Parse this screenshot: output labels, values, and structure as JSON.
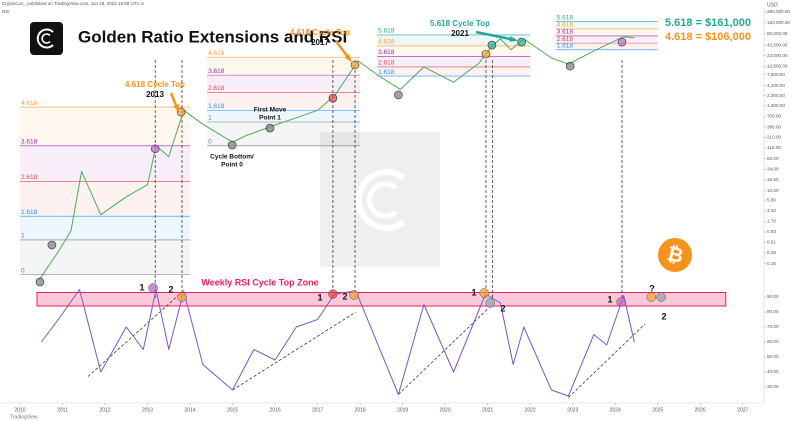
{
  "header": {
    "publisher": "CryptoCon_ published on TradingView.com, Jun 18, 2024 15:58 UTC-4",
    "indicator": "RSI",
    "currency": "USD",
    "footer": "TradingView"
  },
  "chart_data": {
    "type": "line",
    "title": "Golden Ratio Extensions and RSI",
    "log_scale": true,
    "xlim": [
      2010,
      2027.5
    ],
    "xticks": [
      2010,
      2011,
      2012,
      2013,
      2014,
      2015,
      2016,
      2017,
      2018,
      2019,
      2020,
      2021,
      2022,
      2023,
      2024,
      2025,
      2026,
      2027
    ],
    "ylim": [
      0.01,
      280000
    ],
    "yticks": [
      {
        "value": 280000,
        "label": "280,000.00"
      },
      {
        "value": 150000,
        "label": "150,000.00"
      },
      {
        "value": 80000,
        "label": "80,000.00"
      },
      {
        "value": 42000,
        "label": "42,000.00"
      },
      {
        "value": 23000,
        "label": "23,000.00"
      },
      {
        "value": 12500,
        "label": "12,500.00"
      },
      {
        "value": 7600,
        "label": "7,600.00"
      },
      {
        "value": 4100,
        "label": "4,100.00"
      },
      {
        "value": 2300,
        "label": "2,300.00"
      },
      {
        "value": 1300,
        "label": "1,300.00"
      },
      {
        "value": 700,
        "label": "700.00"
      },
      {
        "value": 380,
        "label": "380.00"
      },
      {
        "value": 210,
        "label": "210.00"
      },
      {
        "value": 115,
        "label": "115.00"
      },
      {
        "value": 62,
        "label": "62.00"
      },
      {
        "value": 34,
        "label": "34.00"
      },
      {
        "value": 18.5,
        "label": "18.50"
      },
      {
        "value": 10,
        "label": "10.00"
      },
      {
        "value": 5.8,
        "label": "5.80"
      },
      {
        "value": 3.1,
        "label": "3.10"
      },
      {
        "value": 1.7,
        "label": "1.70"
      },
      {
        "value": 0.93,
        "label": "0.93"
      },
      {
        "value": 0.51,
        "label": "0.51"
      },
      {
        "value": 0.28,
        "label": "0.28"
      },
      {
        "value": 0.15,
        "label": "0.15"
      }
    ],
    "price": {
      "color": "#4caf50",
      "x": [
        2010.45,
        2010.9,
        2011.2,
        2011.45,
        2011.9,
        2012.5,
        2013.0,
        2013.2,
        2013.5,
        2013.85,
        2014.3,
        2015.0,
        2015.3,
        2016.0,
        2016.5,
        2017.0,
        2017.4,
        2017.95,
        2018.5,
        2018.95,
        2019.5,
        2020.2,
        2020.8,
        2021.1,
        2021.3,
        2021.55,
        2021.85,
        2022.5,
        2022.9,
        2023.5,
        2024.2,
        2024.45
      ],
      "values": [
        0.06,
        0.3,
        1,
        30,
        2.5,
        7,
        14,
        130,
        70,
        1000,
        450,
        160,
        230,
        430,
        650,
        1000,
        2300,
        17000,
        6500,
        3300,
        12000,
        5000,
        15000,
        40000,
        60000,
        32000,
        60000,
        20000,
        14000,
        30000,
        68000,
        64000
      ]
    },
    "y2lim": [
      20,
      100
    ],
    "y2ticks": [
      {
        "value": 90,
        "label": "90.00"
      },
      {
        "value": 80,
        "label": "80.00"
      },
      {
        "value": 70,
        "label": "70.00"
      },
      {
        "value": 60,
        "label": "60.00"
      },
      {
        "value": 50,
        "label": "50.00"
      },
      {
        "value": 40,
        "label": "40.00"
      },
      {
        "value": 30,
        "label": "30.00"
      }
    ],
    "rsi": {
      "color": "#7e57c2",
      "x": [
        2010.5,
        2010.9,
        2011.4,
        2011.9,
        2012.5,
        2012.9,
        2013.2,
        2013.5,
        2013.85,
        2014.3,
        2015.0,
        2015.5,
        2016.0,
        2016.5,
        2017.0,
        2017.4,
        2017.9,
        2018.9,
        2019.5,
        2020.2,
        2020.95,
        2021.3,
        2021.6,
        2021.85,
        2022.5,
        2022.9,
        2023.5,
        2023.8,
        2024.2,
        2024.45
      ],
      "values": [
        60,
        75,
        95,
        40,
        70,
        55,
        95,
        55,
        94,
        45,
        28,
        55,
        48,
        70,
        75,
        92,
        94,
        25,
        85,
        40,
        92,
        86,
        45,
        70,
        28,
        24,
        65,
        58,
        91,
        60
      ]
    },
    "rsi_zone": {
      "label": "Weekly RSI Cycle Top Zone",
      "range": [
        84,
        93
      ],
      "x": [
        2010.4,
        2026.6
      ],
      "color": "#f06292"
    },
    "fib_levels": [
      {
        "x": [
          2010.0,
          2014.0
        ],
        "levels": [
          {
            "label": "4.618",
            "value": 1200,
            "color": "#f7a035"
          },
          {
            "label": "3.618",
            "value": 130,
            "color": "#9c27b0"
          },
          {
            "label": "2.618",
            "value": 17,
            "color": "#e5484d"
          },
          {
            "label": "1.618",
            "value": 2.3,
            "color": "#2196f3"
          },
          {
            "label": "1",
            "value": 0.59,
            "color": "#787b86"
          },
          {
            "label": "0",
            "value": 0.08,
            "color": "#787b86"
          }
        ]
      },
      {
        "x": [
          2014.4,
          2018.0
        ],
        "levels": [
          {
            "label": "4.618",
            "value": 21000,
            "color": "#f7a035"
          },
          {
            "label": "3.618",
            "value": 7500,
            "color": "#9c27b0"
          },
          {
            "label": "2.618",
            "value": 2800,
            "color": "#e5484d"
          },
          {
            "label": "1.618",
            "value": 1000,
            "color": "#2196f3"
          },
          {
            "label": "1",
            "value": 510,
            "color": "#787b86"
          },
          {
            "label": "0",
            "value": 130,
            "color": "#787b86"
          }
        ]
      },
      {
        "x": [
          2018.4,
          2022.0
        ],
        "levels": [
          {
            "label": "5.618",
            "value": 75000,
            "color": "#26a69a"
          },
          {
            "label": "4.618",
            "value": 40000,
            "color": "#f7a035"
          },
          {
            "label": "3.618",
            "value": 22000,
            "color": "#9c27b0"
          },
          {
            "label": "2.618",
            "value": 12000,
            "color": "#e5484d"
          },
          {
            "label": "1.618",
            "value": 7100,
            "color": "#2196f3"
          }
        ]
      },
      {
        "x": [
          2022.6,
          2025.0
        ],
        "levels": [
          {
            "label": "5.618",
            "value": 161000,
            "color": "#26a69a"
          },
          {
            "label": "4.618",
            "value": 106000,
            "color": "#f7a035"
          },
          {
            "label": "3.618",
            "value": 71000,
            "color": "#9c27b0"
          },
          {
            "label": "2.618",
            "value": 47000,
            "color": "#e5484d"
          },
          {
            "label": "1.618",
            "value": 32000,
            "color": "#2196f3"
          }
        ]
      }
    ],
    "markers": [
      {
        "x": 2010.47,
        "value": 0.053,
        "color": "#787b86"
      },
      {
        "x": 2010.75,
        "value": 0.44,
        "color": "#787b86"
      },
      {
        "x": 2013.18,
        "value": 110,
        "color": "#ba68c8"
      },
      {
        "x": 2013.79,
        "value": 900,
        "color": "#f7a035"
      },
      {
        "x": 2014.99,
        "value": 136,
        "color": "#787b86"
      },
      {
        "x": 2015.88,
        "value": 360,
        "color": "#787b86"
      },
      {
        "x": 2017.36,
        "value": 2000,
        "color": "#e5484d"
      },
      {
        "x": 2017.88,
        "value": 13400,
        "color": "#f7a035"
      },
      {
        "x": 2018.9,
        "value": 2400,
        "color": "#787b86"
      },
      {
        "x": 2020.96,
        "value": 25000,
        "color": "#f7a035"
      },
      {
        "x": 2021.1,
        "value": 42000,
        "color": "#26a69a"
      },
      {
        "x": 2021.8,
        "value": 50000,
        "color": "#26a69a"
      },
      {
        "x": 2022.94,
        "value": 12600,
        "color": "#787b86"
      },
      {
        "x": 2024.16,
        "value": 50000,
        "color": "#ba68c8"
      }
    ],
    "rsi_markers": [
      {
        "x": 2013.13,
        "value": 96,
        "color": "#ba68c8"
      },
      {
        "x": 2013.81,
        "value": 90,
        "color": "#f7a035"
      },
      {
        "x": 2017.36,
        "value": 92,
        "color": "#e5484d"
      },
      {
        "x": 2017.86,
        "value": 91.3,
        "color": "#f7a035"
      },
      {
        "x": 2020.92,
        "value": 92.7,
        "color": "#f7a035"
      },
      {
        "x": 2021.06,
        "value": 86,
        "color": "#90a4ae"
      },
      {
        "x": 2024.14,
        "value": 86.7,
        "color": "#ba68c8"
      },
      {
        "x": 2024.85,
        "value": 90,
        "color": "#f7a035"
      },
      {
        "x": 2025.08,
        "value": 90,
        "color": "#90a4ae"
      }
    ],
    "vlines": [
      2013.18,
      2013.81,
      2017.36,
      2017.88,
      2020.96,
      2021.11,
      2024.16
    ],
    "rsi_trendlines": [
      [
        [
          2011.6,
          37
        ],
        [
          2013.8,
          93
        ]
      ],
      [
        [
          2015.0,
          28
        ],
        [
          2017.9,
          80
        ]
      ],
      [
        [
          2018.9,
          25
        ],
        [
          2021.0,
          82
        ]
      ],
      [
        [
          2022.9,
          23
        ],
        [
          2024.7,
          72
        ]
      ]
    ],
    "annotations": [
      {
        "text": "4.618 Cycle Top",
        "sub": "2013",
        "color": "#f7931a"
      },
      {
        "text": "4.618 Cycle Top",
        "sub": "2017",
        "color": "#f7931a"
      },
      {
        "text": "5.618 Cycle Top",
        "sub": "2021",
        "color": "#26a69a"
      }
    ],
    "targets": [
      {
        "label": "5.618 = $161,000",
        "color": "#26a69a"
      },
      {
        "label": "4.618 = $106,000",
        "color": "#f7931a"
      }
    ],
    "notes": [
      "First Move",
      "Point 1",
      "Cycle Bottom/",
      "Point 0"
    ],
    "rsi_labels": [
      "1",
      "2",
      "1",
      "2",
      "1",
      "2",
      "1",
      "2",
      "?"
    ],
    "bitcoin_symbol": "₿"
  }
}
